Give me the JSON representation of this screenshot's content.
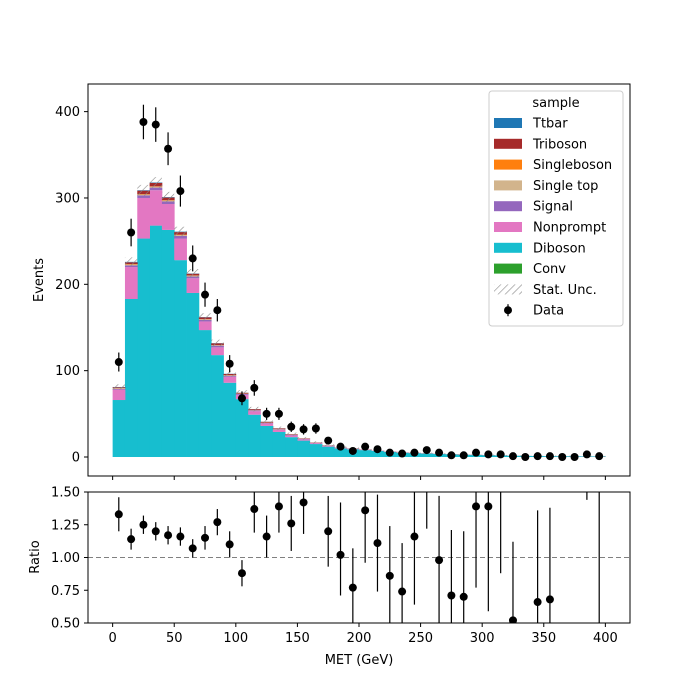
{
  "chart_data": [
    {
      "type": "bar",
      "subtype": "stacked-histogram",
      "title": "",
      "xlabel": "",
      "ylabel": "Events",
      "xlim": [
        -20,
        420
      ],
      "ylim": [
        -22,
        432
      ],
      "xticks": [
        0,
        50,
        100,
        150,
        200,
        250,
        300,
        350,
        400
      ],
      "yticks": [
        0,
        100,
        200,
        300,
        400
      ],
      "bin_edges": [
        0,
        10,
        20,
        30,
        40,
        50,
        60,
        70,
        80,
        90,
        100,
        110,
        120,
        130,
        140,
        150,
        160,
        170,
        180,
        190,
        200,
        210,
        220,
        230,
        240,
        250,
        260,
        270,
        280,
        290,
        300,
        310,
        320,
        330,
        340,
        350,
        360,
        370,
        380,
        390,
        400
      ],
      "legend": {
        "title": "sample",
        "placement": "upper-right",
        "entries": [
          "Ttbar",
          "Triboson",
          "Singleboson",
          "Single top",
          "Signal",
          "Nonprompt",
          "Diboson",
          "Conv",
          "Stat. Unc.",
          "Data"
        ]
      },
      "colors": {
        "Ttbar": "#1f77b4",
        "Triboson": "#a62a2a",
        "Singleboson": "#ff7f0e",
        "Single top": "#d2b48c",
        "Signal": "#9467bd",
        "Nonprompt": "#e377c2",
        "Diboson": "#17becf",
        "Conv": "#2ca02c",
        "Data": "#000000"
      },
      "series": [
        {
          "name": "Diboson",
          "values": [
            66,
            183,
            253,
            268,
            263,
            228,
            190,
            147,
            118,
            86,
            67,
            49,
            36,
            29,
            23,
            19,
            15,
            12,
            10,
            9,
            8,
            7,
            6,
            5,
            4.5,
            4,
            3.5,
            3,
            2.6,
            2.3,
            2,
            1.8,
            1.5,
            1.3,
            1.1,
            1,
            0.9,
            0.8,
            0.7,
            0.6
          ]
        },
        {
          "name": "Nonprompt",
          "values": [
            12,
            37,
            47,
            41,
            30,
            25,
            17,
            10,
            9,
            7,
            5,
            4,
            3,
            2.5,
            2,
            1.5,
            1,
            0.8,
            0.6,
            0.5,
            0.4,
            0.3,
            0.3,
            0.2,
            0.2,
            0.2,
            0.1,
            0.1,
            0.1,
            0.1,
            0.1,
            0.1,
            0.1,
            0.1,
            0.1,
            0.1,
            0.1,
            0.1,
            0.1,
            0.1
          ]
        },
        {
          "name": "Signal",
          "values": [
            1,
            2,
            3,
            3,
            3,
            3,
            2,
            2,
            2,
            1,
            1,
            1,
            0.5,
            0.5,
            0.5,
            0.5,
            0.3,
            0.3,
            0.2,
            0.2,
            0.2,
            0.1,
            0.1,
            0.1,
            0.1,
            0.1,
            0.1,
            0.1,
            0.1,
            0.1,
            0.1,
            0.1,
            0,
            0,
            0,
            0,
            0,
            0,
            0,
            0
          ]
        },
        {
          "name": "Single top",
          "values": [
            0.5,
            1,
            1,
            1,
            1,
            1,
            1,
            0.5,
            0.5,
            0.5,
            0.3,
            0.3,
            0.2,
            0.2,
            0.2,
            0.1,
            0.1,
            0.1,
            0.1,
            0.1,
            0,
            0,
            0,
            0,
            0,
            0,
            0,
            0,
            0,
            0,
            0,
            0,
            0,
            0,
            0,
            0,
            0,
            0,
            0,
            0
          ]
        },
        {
          "name": "Singleboson",
          "values": [
            0.3,
            0.5,
            0.5,
            0.5,
            0.5,
            0.5,
            0.3,
            0.3,
            0.2,
            0.2,
            0.1,
            0.1,
            0.1,
            0.1,
            0.1,
            0,
            0,
            0,
            0,
            0,
            0,
            0,
            0,
            0,
            0,
            0,
            0,
            0,
            0,
            0,
            0,
            0,
            0,
            0,
            0,
            0,
            0,
            0,
            0,
            0
          ]
        },
        {
          "name": "Triboson",
          "values": [
            1,
            2,
            4,
            4,
            3,
            3,
            2,
            2,
            2,
            1.5,
            1,
            1,
            1,
            0.8,
            0.6,
            0.5,
            0.4,
            0.3,
            0.2,
            0.2,
            0.2,
            0.1,
            0.1,
            0.1,
            0.1,
            0.1,
            0.1,
            0.1,
            0.1,
            0.1,
            0.1,
            0,
            0,
            0,
            0,
            0,
            0,
            0,
            0,
            0
          ]
        },
        {
          "name": "Ttbar",
          "values": [
            0.3,
            0.5,
            0.5,
            0.5,
            0.5,
            0.5,
            0.3,
            0.3,
            0.2,
            0.2,
            0.1,
            0.1,
            0.1,
            0.1,
            0.1,
            0,
            0,
            0,
            0,
            0,
            0,
            0,
            0,
            0,
            0,
            0,
            0,
            0,
            0,
            0,
            0,
            0,
            0,
            0,
            0,
            0,
            0,
            0,
            0,
            0
          ]
        },
        {
          "name": "Conv",
          "values": [
            0,
            0,
            0,
            0,
            0,
            0,
            0,
            0,
            0,
            0,
            0,
            0,
            0,
            0,
            0,
            0,
            0,
            0,
            0,
            0,
            0,
            0,
            0,
            0,
            0,
            0,
            0,
            0,
            0,
            0,
            0,
            0,
            0,
            0,
            0,
            0,
            0,
            0,
            0,
            0
          ]
        }
      ],
      "data_points": {
        "name": "Data",
        "x": [
          5,
          15,
          25,
          35,
          45,
          55,
          65,
          75,
          85,
          95,
          105,
          115,
          125,
          135,
          145,
          155,
          165,
          175,
          185,
          195,
          205,
          215,
          225,
          235,
          245,
          255,
          265,
          275,
          285,
          295,
          305,
          315,
          325,
          335,
          345,
          355,
          365,
          375,
          385,
          395
        ],
        "y": [
          110,
          260,
          388,
          385,
          357,
          308,
          230,
          188,
          170,
          108,
          68,
          80,
          50,
          50,
          35,
          32,
          33,
          19,
          12,
          7,
          12,
          9,
          5,
          4,
          5,
          8,
          5,
          2,
          2,
          5,
          3,
          3,
          1,
          0,
          1,
          1,
          0,
          0,
          3,
          1
        ],
        "yerr": [
          11,
          16,
          20,
          20,
          19,
          18,
          15,
          14,
          13,
          10,
          8,
          9,
          7,
          7,
          6,
          6,
          6,
          4,
          3.5,
          2.6,
          3.5,
          3,
          2.2,
          2,
          2.2,
          2.8,
          2.2,
          1.4,
          1.4,
          2.2,
          1.7,
          1.7,
          1,
          1,
          1,
          1,
          1,
          1,
          1.7,
          1
        ]
      }
    },
    {
      "type": "scatter",
      "title": "",
      "xlabel": "MET (GeV)",
      "ylabel": "Ratio",
      "xlim": [
        -20,
        420
      ],
      "ylim": [
        0.5,
        1.5
      ],
      "xticks": [
        0,
        50,
        100,
        150,
        200,
        250,
        300,
        350,
        400
      ],
      "yticks": [
        0.5,
        0.75,
        1.0,
        1.25,
        1.5
      ],
      "ytick_labels": [
        "0.50",
        "0.75",
        "1.00",
        "1.25",
        "1.50"
      ],
      "reference_line": 1.0,
      "x": [
        5,
        15,
        25,
        35,
        45,
        55,
        65,
        75,
        85,
        95,
        105,
        115,
        125,
        135,
        145,
        155,
        175,
        185,
        195,
        205,
        215,
        225,
        235,
        245,
        255,
        265,
        275,
        285,
        295,
        305,
        315,
        325,
        335,
        345,
        355,
        385,
        395
      ],
      "y": [
        1.33,
        1.14,
        1.25,
        1.2,
        1.17,
        1.16,
        1.07,
        1.15,
        1.27,
        1.1,
        0.88,
        1.37,
        1.16,
        1.39,
        1.26,
        1.42,
        1.2,
        1.02,
        0.77,
        1.36,
        1.11,
        0.86,
        0.74,
        1.16,
        null,
        0.98,
        0.71,
        0.7,
        1.39,
        1.39,
        null,
        0.52,
        null,
        0.66,
        0.68,
        null,
        null
      ],
      "yerr_low": [
        0.13,
        0.08,
        0.07,
        0.07,
        0.07,
        0.07,
        0.07,
        0.09,
        0.1,
        0.1,
        0.1,
        0.18,
        0.16,
        0.2,
        0.21,
        0.24,
        0.27,
        0.31,
        0.3,
        0.4,
        0.37,
        0.38,
        0.37,
        0.52,
        0,
        0.49,
        0.5,
        0.5,
        0.62,
        0.8,
        0,
        0.52,
        0,
        0.66,
        0.68,
        0,
        0
      ],
      "yerr_high": [
        0.13,
        0.08,
        0.07,
        0.07,
        0.07,
        0.07,
        0.07,
        0.09,
        0.1,
        0.1,
        0.1,
        0.18,
        0.16,
        0.2,
        0.21,
        0.24,
        0.27,
        0.4,
        0.3,
        0.4,
        0.37,
        0.38,
        0.37,
        0.52,
        0,
        0.49,
        0.5,
        0.5,
        0.62,
        0.8,
        0,
        0.6,
        0,
        0.7,
        0.7,
        0,
        0
      ],
      "open_error_bars": [
        {
          "x": 255,
          "y_low": 1.22,
          "y_high": 1.5
        },
        {
          "x": 315,
          "y_low": 0.88,
          "y_high": 1.5
        },
        {
          "x": 385,
          "y_low": 1.44,
          "y_high": 1.5
        },
        {
          "x": 395,
          "y_low": 0.5,
          "y_high": 1.5
        }
      ]
    }
  ]
}
